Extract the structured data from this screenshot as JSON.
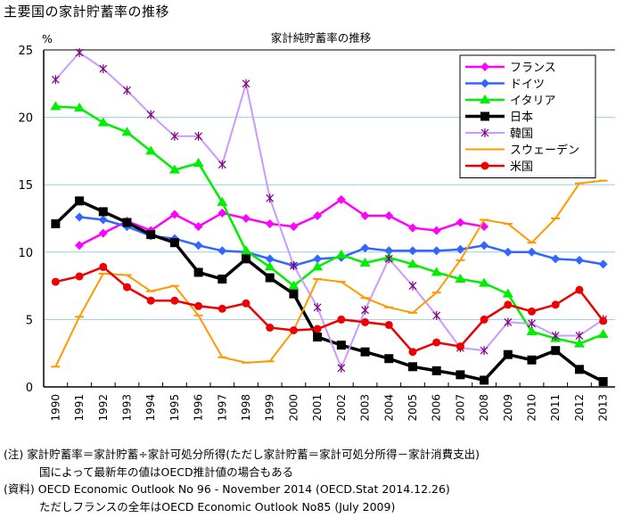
{
  "page_title": "主要国の家計貯蓄率の推移",
  "notes": [
    "(注) 家計貯蓄率＝家計貯蓄÷家計可処分所得(ただし家計貯蓄＝家計可処分所得－家計消費支出)",
    "国によって最新年の値はOECD推計値の場合もある",
    "(資料) OECD Economic Outlook No 96 - November 2014 (OECD.Stat 2014.12.26)",
    "ただしフランスの全年はOECD Economic Outlook No85 (July 2009)"
  ],
  "chart_data": {
    "type": "line",
    "title": "家計純貯蓄率の推移",
    "ylabel": "%",
    "xlabel": "",
    "ylim": [
      0,
      25
    ],
    "yticks": [
      0,
      5,
      10,
      15,
      20,
      25
    ],
    "grid": true,
    "legend_position": "top-right",
    "x": [
      1990,
      1991,
      1992,
      1993,
      1994,
      1995,
      1996,
      1997,
      1998,
      1999,
      2000,
      2001,
      2002,
      2003,
      2004,
      2005,
      2006,
      2007,
      2008,
      2009,
      2010,
      2011,
      2012,
      2013
    ],
    "series": [
      {
        "name": "フランス",
        "color": "#ff00ff",
        "marker": "diamond",
        "values": [
          null,
          10.5,
          11.4,
          12.3,
          11.6,
          12.8,
          11.9,
          12.9,
          12.5,
          12.1,
          11.9,
          12.7,
          13.9,
          12.7,
          12.7,
          11.8,
          11.6,
          12.2,
          11.9,
          null,
          null,
          null,
          null,
          null
        ]
      },
      {
        "name": "ドイツ",
        "color": "#3366ff",
        "marker": "diamond",
        "values": [
          null,
          12.6,
          12.4,
          11.9,
          11.2,
          11.0,
          10.5,
          10.1,
          10.0,
          9.5,
          9.0,
          9.5,
          9.6,
          10.3,
          10.1,
          10.1,
          10.1,
          10.2,
          10.5,
          10.0,
          10.0,
          9.5,
          9.4,
          9.1
        ]
      },
      {
        "name": "イタリア",
        "color": "#00ee00",
        "marker": "triangle",
        "values": [
          20.8,
          20.7,
          19.6,
          18.9,
          17.5,
          16.1,
          16.6,
          13.7,
          10.1,
          8.9,
          7.5,
          8.9,
          9.8,
          9.2,
          9.6,
          9.1,
          8.5,
          8.0,
          7.7,
          6.9,
          4.1,
          3.6,
          3.2,
          3.9
        ]
      },
      {
        "name": "日本",
        "color": "#000000",
        "marker": "square",
        "values": [
          12.1,
          13.8,
          13.0,
          12.2,
          11.3,
          10.7,
          8.5,
          8.0,
          9.5,
          8.1,
          6.9,
          3.7,
          3.1,
          2.6,
          2.1,
          1.5,
          1.2,
          0.9,
          0.5,
          2.4,
          2.0,
          2.7,
          1.3,
          0.4
        ]
      },
      {
        "name": "韓国",
        "color": "#cc99ff",
        "marker": "star",
        "values": [
          22.8,
          24.8,
          23.6,
          22.0,
          20.2,
          18.6,
          18.6,
          16.5,
          22.5,
          14.0,
          9.0,
          5.9,
          1.4,
          5.7,
          9.5,
          7.5,
          5.3,
          2.9,
          2.7,
          4.8,
          4.7,
          3.8,
          3.8,
          5.0
        ]
      },
      {
        "name": "スウェーデン",
        "color": "#ff9900",
        "marker": "dash",
        "values": [
          1.5,
          5.2,
          8.4,
          8.3,
          7.1,
          7.5,
          5.3,
          2.2,
          1.8,
          1.9,
          4.2,
          8.0,
          7.8,
          6.6,
          5.9,
          5.5,
          7.0,
          9.4,
          12.4,
          12.1,
          10.7,
          12.5,
          15.1,
          15.3
        ]
      },
      {
        "name": "米国",
        "color": "#ee0000",
        "marker": "circle",
        "values": [
          7.8,
          8.2,
          8.9,
          7.4,
          6.4,
          6.4,
          6.0,
          5.8,
          6.2,
          4.4,
          4.2,
          4.3,
          5.0,
          4.8,
          4.6,
          2.6,
          3.3,
          3.0,
          5.0,
          6.1,
          5.6,
          6.1,
          7.2,
          4.9
        ]
      }
    ]
  }
}
